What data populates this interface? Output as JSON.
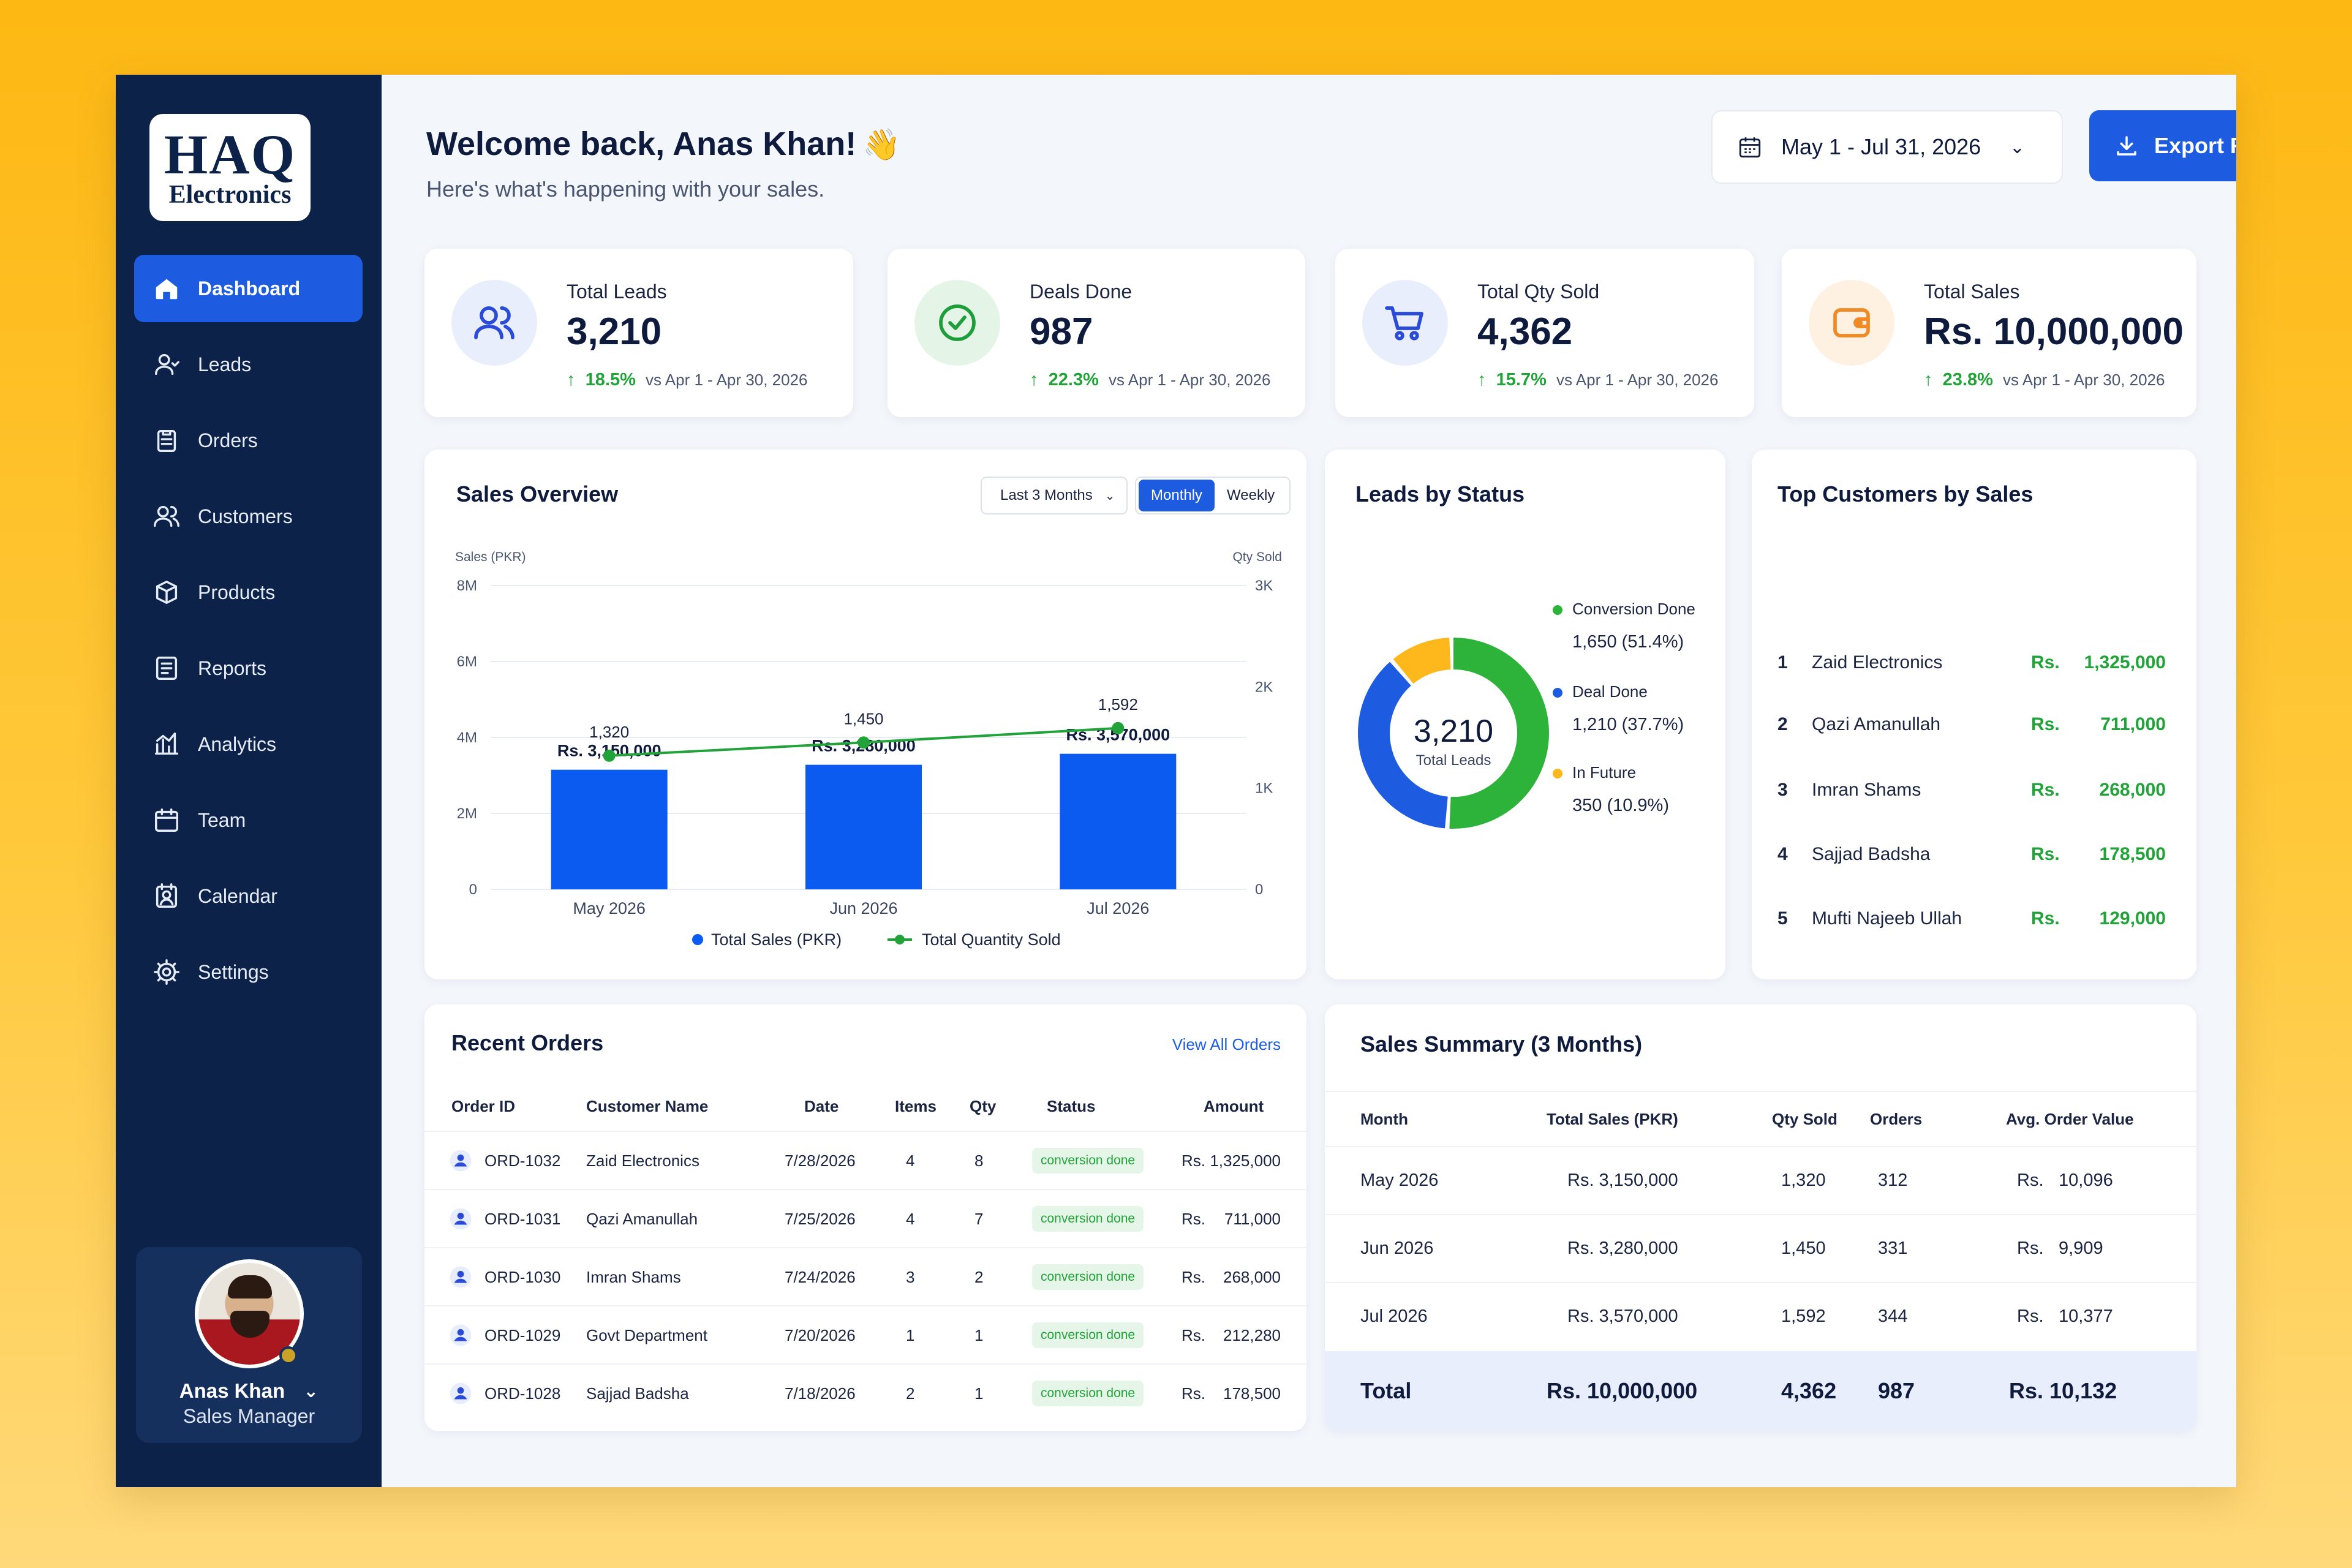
{
  "brand": {
    "line1": "HAQ",
    "line2": "Electronics"
  },
  "nav": [
    {
      "label": "Dashboard",
      "icon": "home-icon",
      "active": true
    },
    {
      "label": "Leads",
      "icon": "user-icon"
    },
    {
      "label": "Orders",
      "icon": "clipboard-icon"
    },
    {
      "label": "Customers",
      "icon": "users-icon"
    },
    {
      "label": "Products",
      "icon": "box-icon"
    },
    {
      "label": "Reports",
      "icon": "report-icon"
    },
    {
      "label": "Analytics",
      "icon": "bar-chart-icon"
    },
    {
      "label": "Team",
      "icon": "calendar-icon"
    },
    {
      "label": "Calendar",
      "icon": "calendar-user-icon"
    },
    {
      "label": "Settings",
      "icon": "gear-icon"
    }
  ],
  "profile": {
    "name": "Anas Khan",
    "role": "Sales Manager"
  },
  "header": {
    "greeting": "Welcome back, Anas Khan!",
    "wave": "👋",
    "subtitle": "Here's what's happening with your sales.",
    "date_range": "May 1 - Jul 31, 2026",
    "export_label": "Export Report"
  },
  "stats": [
    {
      "label": "Total Leads",
      "value": "3,210",
      "change": "18.5%",
      "range": "vs Apr 1 - Apr 30, 2026",
      "icon": "users-icon",
      "color": "#2A4BD7",
      "bg": "#E9EEFC"
    },
    {
      "label": "Deals Done",
      "value": "987",
      "change": "22.3%",
      "range": "vs Apr 1 - Apr 30, 2026",
      "icon": "check-circle-icon",
      "color": "#1E9E3A",
      "bg": "#E4F5E8"
    },
    {
      "label": "Total Qty Sold",
      "value": "4,362",
      "change": "15.7%",
      "range": "vs Apr 1 - Apr 30, 2026",
      "icon": "cart-icon",
      "color": "#2A4BD7",
      "bg": "#E9EEFC"
    },
    {
      "label": "Total Sales",
      "value": "Rs. 10,000,000",
      "change": "23.8%",
      "range": "vs Apr 1 - Apr 30, 2026",
      "icon": "wallet-icon",
      "color": "#F08A24",
      "bg": "#FFF1E2"
    }
  ],
  "sales_overview": {
    "title": "Sales Overview",
    "period": "Last 3 Months",
    "toggle": [
      "Monthly",
      "Weekly"
    ],
    "active_toggle": "Monthly",
    "legend": [
      "Total Sales (PKR)",
      "Total Quantity Sold"
    ]
  },
  "chart_data": {
    "type": "bar",
    "categories": [
      "May 2026",
      "Jun 2026",
      "Jul 2026"
    ],
    "series": [
      {
        "name": "Total Sales (PKR)",
        "type": "bar",
        "axis": "left",
        "values": [
          3150000,
          3280000,
          3570000
        ],
        "labels": [
          "Rs. 3,150,000",
          "Rs. 3,280,000",
          "Rs. 3,570,000"
        ],
        "color": "#0B5BF0"
      },
      {
        "name": "Total Quantity Sold",
        "type": "line",
        "axis": "right",
        "values": [
          1320,
          1450,
          1592
        ],
        "labels": [
          "1,320",
          "1,450",
          "1,592"
        ],
        "color": "#22A33A"
      }
    ],
    "ylabel": "Sales (PKR)",
    "y2label": "Qty Sold",
    "ylim": [
      0,
      8000000
    ],
    "y2lim": [
      0,
      3000
    ],
    "yticks": [
      "0",
      "2M",
      "4M",
      "6M",
      "8M"
    ],
    "y2ticks": [
      "0",
      "1K",
      "2K",
      "3K"
    ],
    "grid": true,
    "legend_position": "bottom"
  },
  "leads_status": {
    "title": "Leads by Status",
    "total": "3,210",
    "total_label": "Total Leads",
    "segments": [
      {
        "label": "Conversion Done",
        "value": "1,650 (51.4%)",
        "share": 51.4,
        "color": "#2DB33A"
      },
      {
        "label": "Deal Done",
        "value": "1,210 (37.7%)",
        "share": 37.7,
        "color": "#1D5BE0"
      },
      {
        "label": "In Future",
        "value": "350 (10.9%)",
        "share": 10.9,
        "color": "#FFB81C"
      }
    ]
  },
  "top_customers": {
    "title": "Top Customers by Sales",
    "rows": [
      {
        "rank": "1",
        "name": "Zaid Electronics",
        "rs": "Rs.",
        "amount": "1,325,000"
      },
      {
        "rank": "2",
        "name": "Qazi Amanullah",
        "rs": "Rs.",
        "amount": "711,000"
      },
      {
        "rank": "3",
        "name": "Imran Shams",
        "rs": "Rs.",
        "amount": "268,000"
      },
      {
        "rank": "4",
        "name": "Sajjad Badsha",
        "rs": "Rs.",
        "amount": "178,500"
      },
      {
        "rank": "5",
        "name": "Mufti Najeeb Ullah",
        "rs": "Rs.",
        "amount": "129,000"
      }
    ]
  },
  "recent_orders": {
    "title": "Recent Orders",
    "view_all": "View All Orders",
    "columns": [
      "Order ID",
      "Customer Name",
      "Date",
      "Items",
      "Qty",
      "Status",
      "Amount"
    ],
    "rows": [
      {
        "id": "ORD-1032",
        "customer": "Zaid Electronics",
        "date": "7/28/2026",
        "items": "4",
        "qty": "8",
        "status": "conversion done",
        "rs": "Rs.",
        "amount": "1,325,000"
      },
      {
        "id": "ORD-1031",
        "customer": "Qazi Amanullah",
        "date": "7/25/2026",
        "items": "4",
        "qty": "7",
        "status": "conversion done",
        "rs": "Rs.",
        "amount": "711,000"
      },
      {
        "id": "ORD-1030",
        "customer": "Imran Shams",
        "date": "7/24/2026",
        "items": "3",
        "qty": "2",
        "status": "conversion done",
        "rs": "Rs.",
        "amount": "268,000"
      },
      {
        "id": "ORD-1029",
        "customer": "Govt Department",
        "date": "7/20/2026",
        "items": "1",
        "qty": "1",
        "status": "conversion done",
        "rs": "Rs.",
        "amount": "212,280"
      },
      {
        "id": "ORD-1028",
        "customer": "Sajjad Badsha",
        "date": "7/18/2026",
        "items": "2",
        "qty": "1",
        "status": "conversion done",
        "rs": "Rs.",
        "amount": "178,500"
      }
    ]
  },
  "sales_summary": {
    "title": "Sales Summary (3 Months)",
    "columns": [
      "Month",
      "Total Sales (PKR)",
      "Qty Sold",
      "Orders",
      "Avg. Order Value"
    ],
    "rows": [
      {
        "month": "May 2026",
        "sales": "Rs. 3,150,000",
        "qty": "1,320",
        "orders": "312",
        "rs": "Rs.",
        "avg": "10,096"
      },
      {
        "month": "Jun 2026",
        "sales": "Rs. 3,280,000",
        "qty": "1,450",
        "orders": "331",
        "rs": "Rs.",
        "avg": "9,909"
      },
      {
        "month": "Jul 2026",
        "sales": "Rs. 3,570,000",
        "qty": "1,592",
        "orders": "344",
        "rs": "Rs.",
        "avg": "10,377"
      }
    ],
    "total": {
      "label": "Total",
      "sales": "Rs. 10,000,000",
      "qty": "4,362",
      "orders": "987",
      "avg": "Rs. 10,132"
    }
  }
}
